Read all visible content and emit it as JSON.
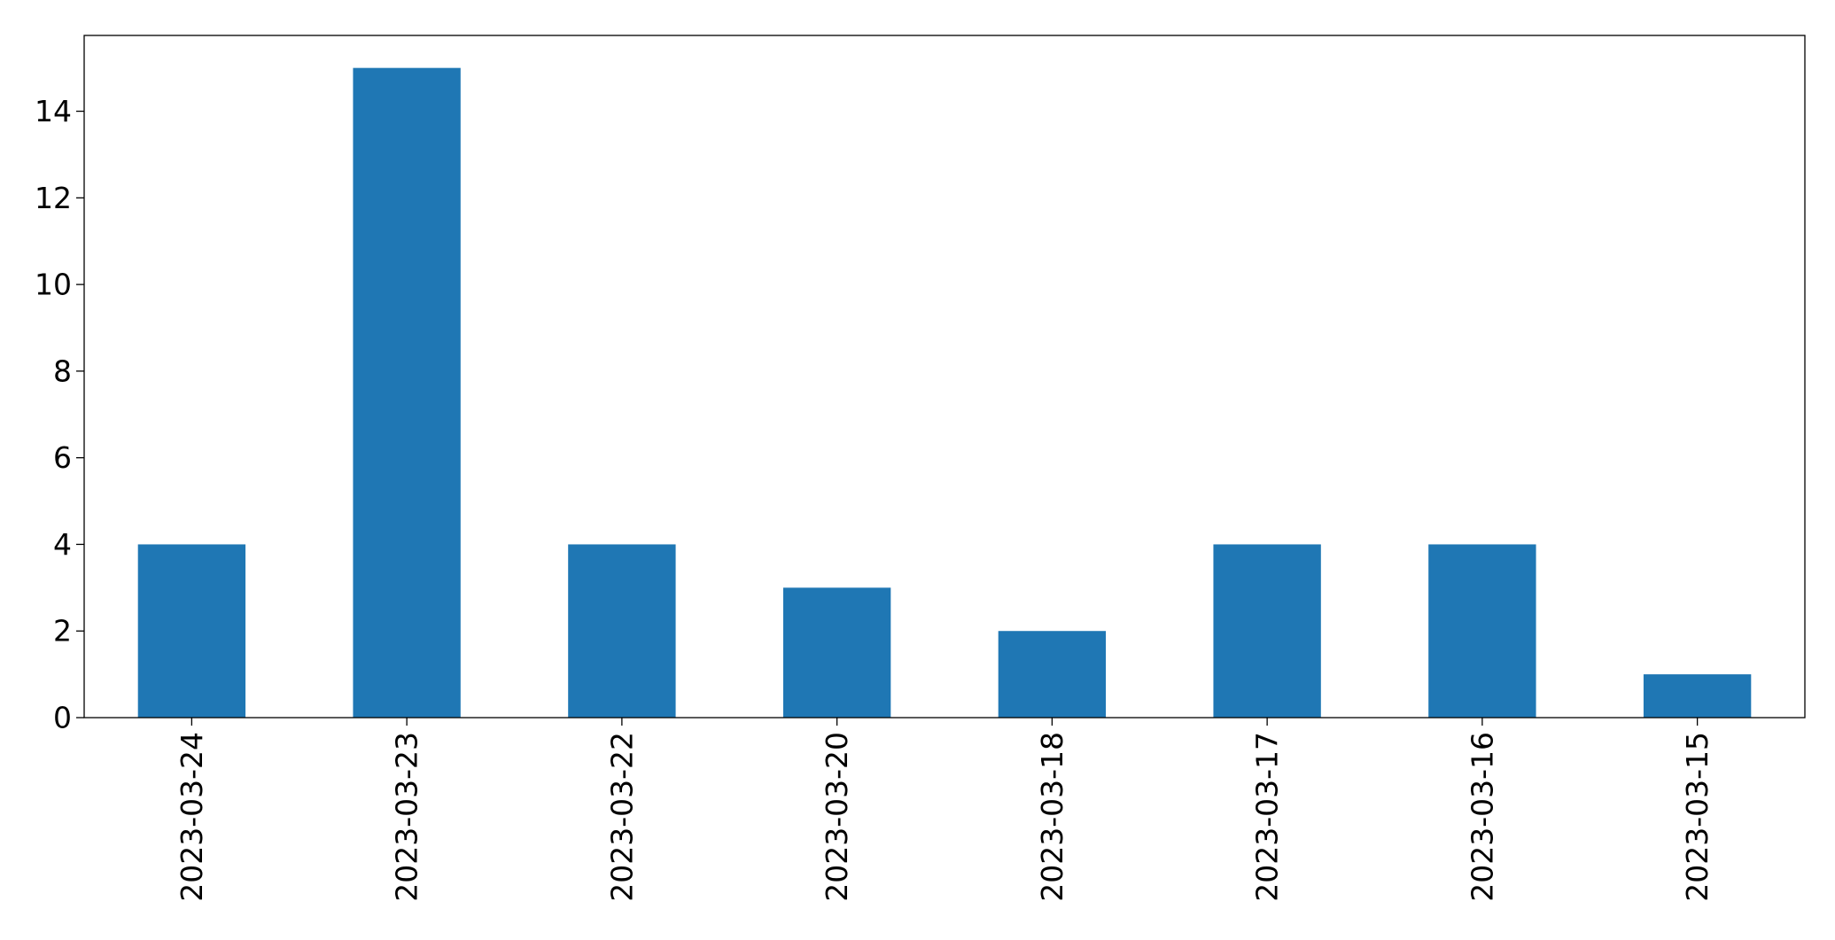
{
  "chart_data": {
    "type": "bar",
    "categories": [
      "2023-03-24",
      "2023-03-23",
      "2023-03-22",
      "2023-03-20",
      "2023-03-18",
      "2023-03-17",
      "2023-03-16",
      "2023-03-15"
    ],
    "values": [
      4,
      15,
      4,
      3,
      2,
      4,
      4,
      1
    ],
    "title": "",
    "xlabel": "",
    "ylabel": "",
    "ylim": [
      0,
      15.75
    ],
    "yticks": [
      0,
      2,
      4,
      6,
      8,
      10,
      12,
      14
    ],
    "grid": false,
    "legend": "none",
    "bar_color": "#1f77b4",
    "x_tick_rotation": "vertical"
  }
}
